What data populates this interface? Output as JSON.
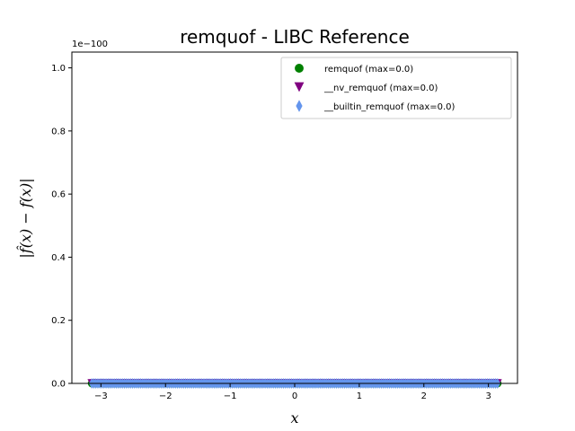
{
  "chart_data": {
    "type": "scatter",
    "title": "remquof - LIBC Reference",
    "xlabel": "x",
    "ylabel": "|f̂(x) − f(x)|",
    "y_offset_label": "1e−100",
    "xlim": [
      -3.45,
      3.45
    ],
    "ylim": [
      0,
      1.05
    ],
    "x_ticks": [
      -3,
      -2,
      -1,
      0,
      1,
      2,
      3
    ],
    "x_tick_labels": [
      "−3",
      "−2",
      "−1",
      "0",
      "1",
      "2",
      "3"
    ],
    "y_ticks": [
      0.0,
      0.2,
      0.4,
      0.6,
      0.8,
      1.0
    ],
    "y_tick_labels": [
      "0.0",
      "0.2",
      "0.4",
      "0.6",
      "0.8",
      "1.0"
    ],
    "grid": false,
    "legend_position": "top-right",
    "x_range": [
      -3.14159,
      3.14159
    ],
    "n_points": 200,
    "series": [
      {
        "name": "remquof (max=0.0)",
        "marker": "circle",
        "color": "#008000",
        "value": 0.0
      },
      {
        "name": "__nv_remquof (max=0.0)",
        "marker": "triangle-down",
        "color": "#800080",
        "value": 0.0
      },
      {
        "name": "__builtin_remquof (max=0.0)",
        "marker": "diamond",
        "color": "#6495ED",
        "value": 0.0
      }
    ]
  }
}
